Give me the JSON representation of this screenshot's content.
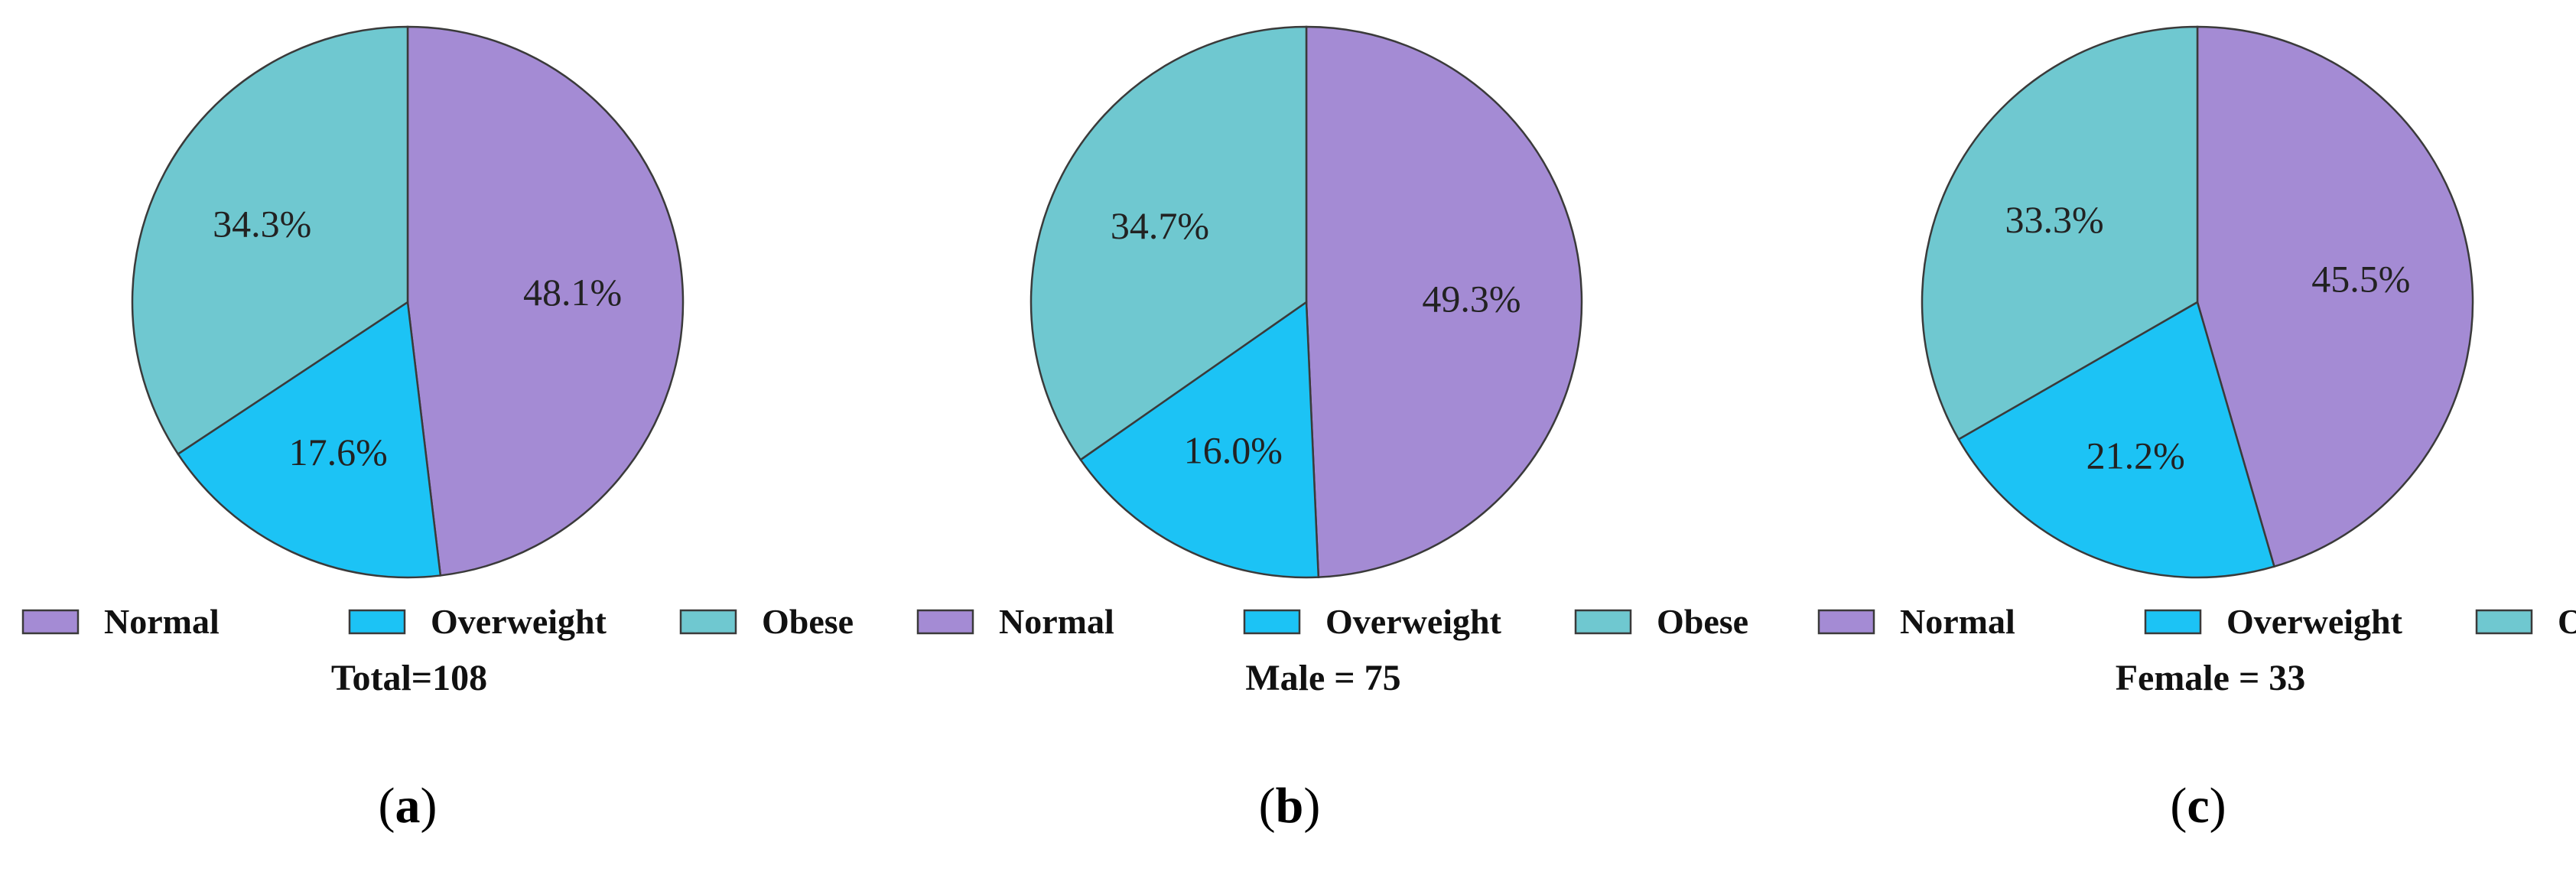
{
  "colors": {
    "Normal": "#a48bd4",
    "Overweight": "#1cc3f5",
    "Obese": "#6fc8d0",
    "outline": "#3a3a3a"
  },
  "legend_labels": [
    "Normal",
    "Overweight",
    "Obese"
  ],
  "chart_data": [
    {
      "type": "pie",
      "panel": "a",
      "caption": "Total=108",
      "categories": [
        "Normal",
        "Overweight",
        "Obese"
      ],
      "values": [
        48.1,
        17.6,
        34.3
      ],
      "value_labels": [
        "48.1%",
        "17.6%",
        "34.3%"
      ],
      "start_angle_deg": 0,
      "direction": "clockwise",
      "legend_placement": "bottom"
    },
    {
      "type": "pie",
      "panel": "b",
      "caption": "Male = 75",
      "categories": [
        "Normal",
        "Overweight",
        "Obese"
      ],
      "values": [
        49.3,
        16.0,
        34.7
      ],
      "value_labels": [
        "49.3%",
        "16.0%",
        "34.7%"
      ],
      "start_angle_deg": 0,
      "direction": "clockwise",
      "legend_placement": "bottom"
    },
    {
      "type": "pie",
      "panel": "c",
      "caption": "Female = 33",
      "categories": [
        "Normal",
        "Overweight",
        "Obese"
      ],
      "values": [
        45.5,
        21.2,
        33.3
      ],
      "value_labels": [
        "45.5%",
        "21.2%",
        "33.3%"
      ],
      "start_angle_deg": 0,
      "direction": "clockwise",
      "legend_placement": "bottom"
    }
  ]
}
